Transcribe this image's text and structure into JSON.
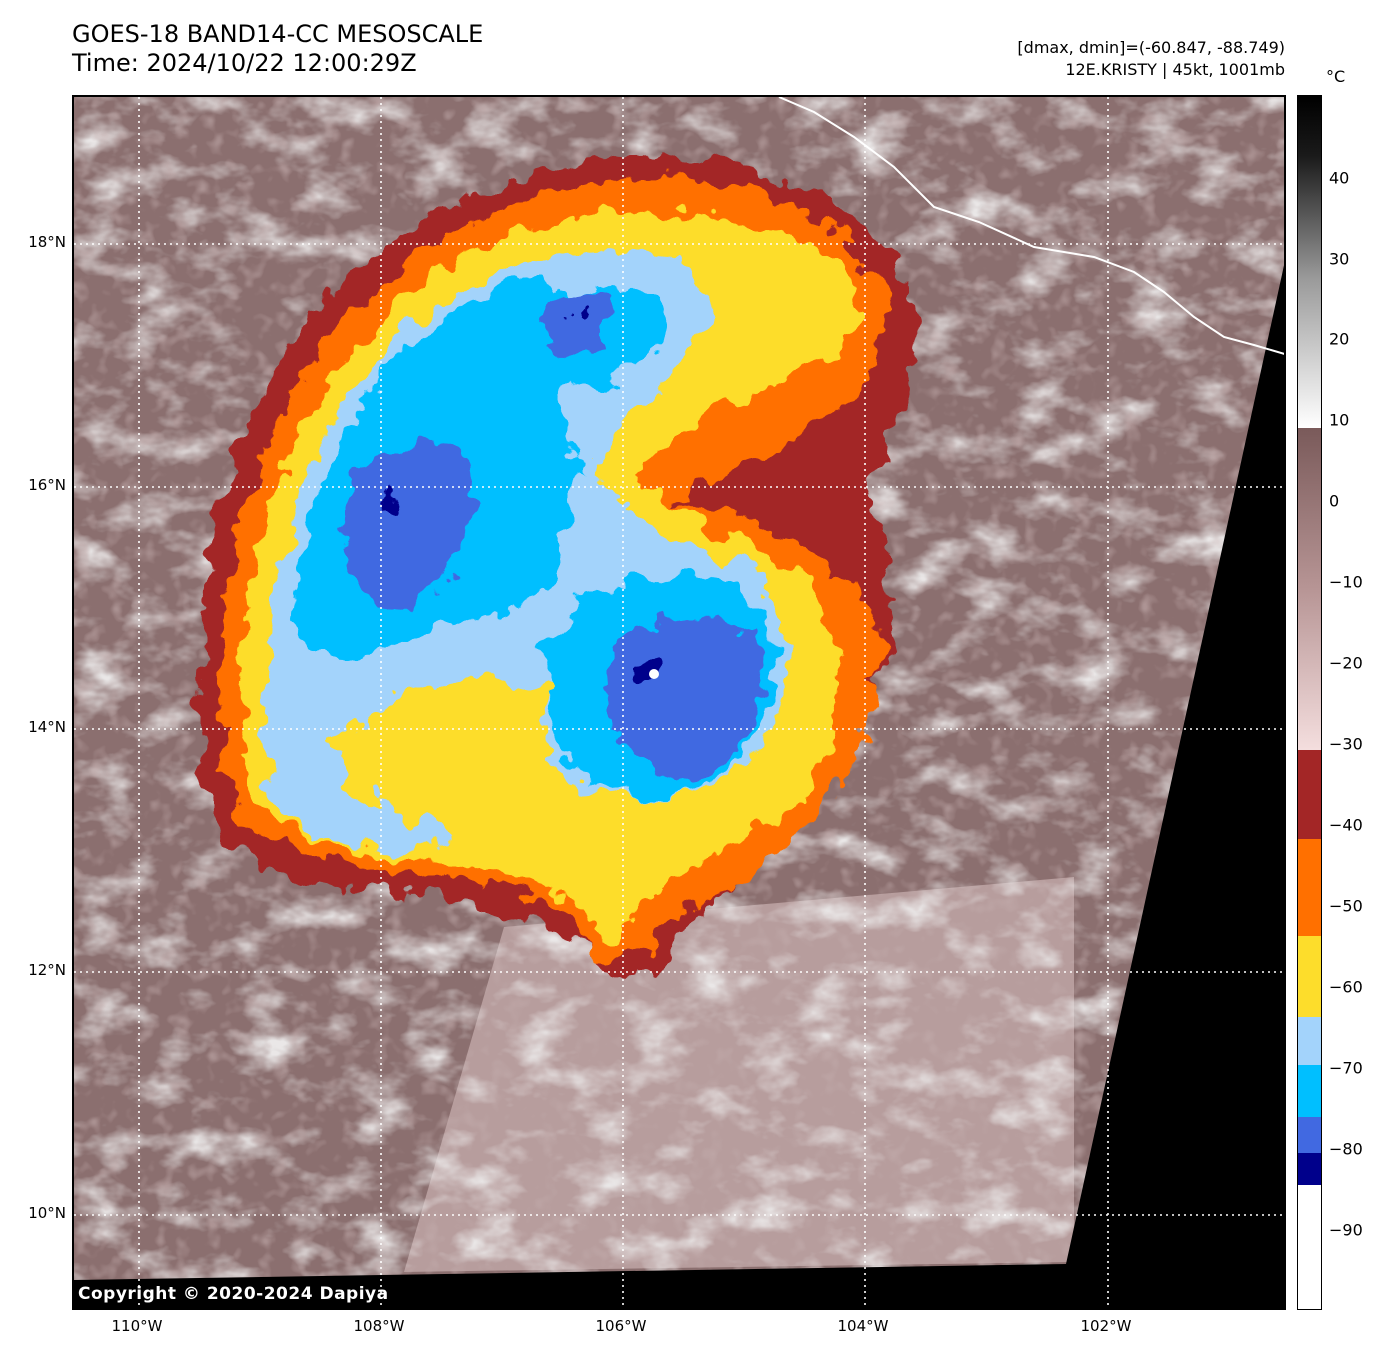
{
  "title": {
    "line1": "GOES-18 BAND14-CC MESOSCALE",
    "line2": "Time: 2024/10/22 12:00:29Z"
  },
  "info": {
    "line1": "[dmax, dmin]=(-60.847, -88.749)",
    "line2": "12E.KRISTY | 45kt, 1001mb"
  },
  "copyright": "Copyright © 2020-2024 Dapiya",
  "map": {
    "lat_labels": [
      "18°N",
      "16°N",
      "14°N",
      "12°N",
      "10°N"
    ],
    "lon_labels": [
      "110°W",
      "108°W",
      "106°W",
      "104°W",
      "102°W"
    ],
    "gridlines": "dotted-white",
    "no_data_color": "#000000",
    "storm": "12E.KRISTY"
  },
  "colorbar": {
    "unit": "°C",
    "tick_labels": [
      "40",
      "30",
      "20",
      "10",
      "0",
      "−10",
      "−20",
      "−30",
      "−40",
      "−50",
      "−60",
      "−70",
      "−80",
      "−90"
    ],
    "range": [
      -100,
      50
    ],
    "bands": [
      {
        "from": -100,
        "to": -84,
        "color": "#ffffff"
      },
      {
        "from": -84,
        "to": -80,
        "color": "#00008b"
      },
      {
        "from": -80,
        "to": -75,
        "color": "#4169e1"
      },
      {
        "from": -75,
        "to": -69,
        "color": "#00bfff"
      },
      {
        "from": -69,
        "to": -63,
        "color": "#a3d3fb"
      },
      {
        "from": -63,
        "to": -53,
        "color": "#fddd2b"
      },
      {
        "from": -53,
        "to": -41,
        "color": "#ff7000"
      },
      {
        "from": -41,
        "to": -30,
        "color": "#a32626"
      }
    ]
  }
}
